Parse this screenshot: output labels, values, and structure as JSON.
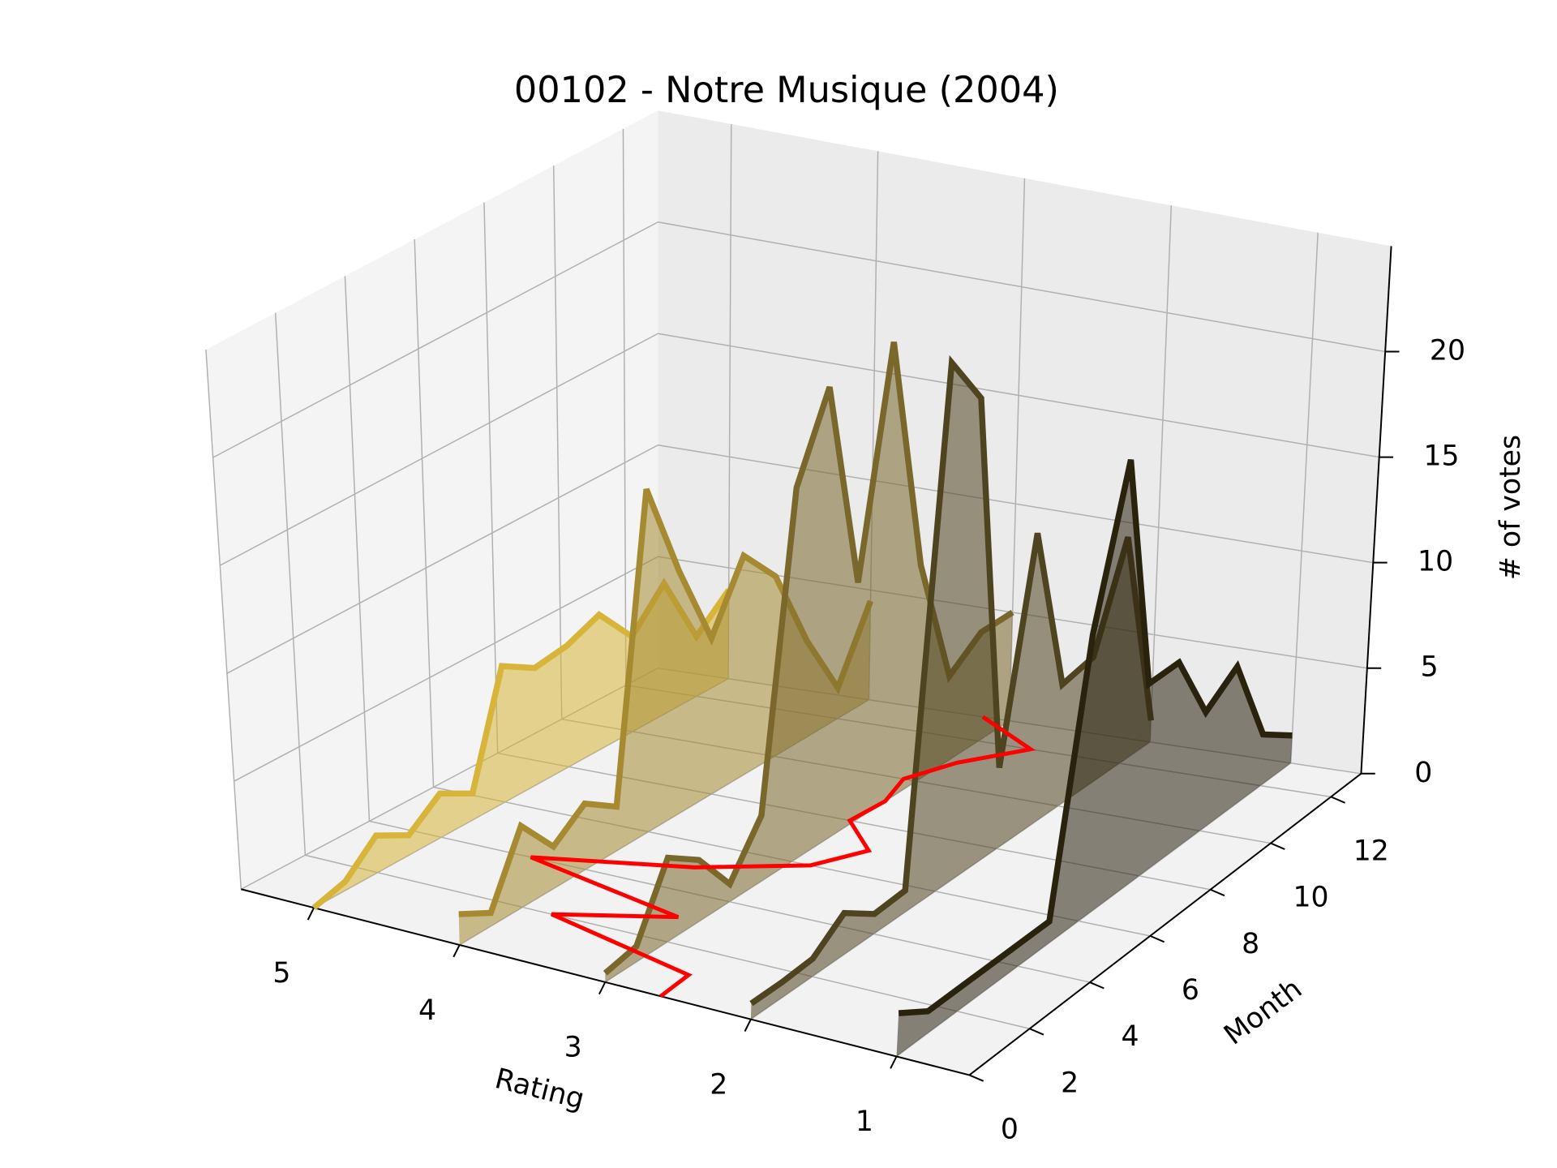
{
  "chart_data": {
    "type": "line3d",
    "title": "00102 - Notre Musique (2004)",
    "xlabel": "Rating",
    "ylabel": "Month",
    "zlabel": "# of votes",
    "xlim": [
      5.5,
      0.5
    ],
    "xticks": [
      1,
      2,
      3,
      4,
      5
    ],
    "ylim": [
      0,
      13
    ],
    "yticks": [
      0,
      2,
      4,
      6,
      8,
      10,
      12
    ],
    "zlim": [
      0,
      25
    ],
    "zticks": [
      0,
      5,
      10,
      15,
      20
    ],
    "grid": true,
    "months": [
      0,
      1,
      2,
      3,
      4,
      5,
      6,
      7,
      8,
      9,
      10,
      11,
      12,
      13
    ],
    "series": [
      {
        "rating": 5,
        "color": "#d7b43a",
        "values": [
          0,
          0.4,
          1.7,
          0.9,
          2,
          1.2,
          6.2,
          5.3,
          5.5,
          6.1,
          4.3,
          5.9,
          2.7,
          4
        ]
      },
      {
        "rating": 4,
        "color": "#a68a32",
        "values": [
          1.4,
          0.6,
          3.7,
          1.9,
          3,
          2,
          15.6,
          11,
          7.1,
          10,
          8.2,
          4.4,
          1.4,
          4.5
        ]
      },
      {
        "rating": 3,
        "color": "#7a672b",
        "values": [
          0.4,
          0.7,
          3.8,
          2.8,
          0.8,
          3,
          17,
          20.7,
          10.9,
          21,
          9.9,
          3.9,
          5,
          5
        ]
      },
      {
        "rating": 2,
        "color": "#4f4420",
        "values": [
          0.7,
          0.7,
          0.8,
          1.9,
          0.9,
          1,
          24,
          21.5,
          3.7,
          13.5,
          5.6,
          5.9,
          10.5,
          1
        ]
      },
      {
        "rating": 1,
        "color": "#29230e",
        "values": [
          1.9,
          1,
          1,
          1,
          1,
          1,
          13,
          20,
          8.8,
          8.8,
          5.5,
          6.6,
          2.4,
          1.3
        ]
      }
    ],
    "mean_rating": {
      "color": "#ff0000",
      "values": [
        2.62,
        2.64,
        3.8,
        3.14,
        4.38,
        3.46,
        2.87,
        2.68,
        3.03,
        3.0,
        3.09,
        2.93,
        2.63,
        3.19
      ]
    }
  }
}
